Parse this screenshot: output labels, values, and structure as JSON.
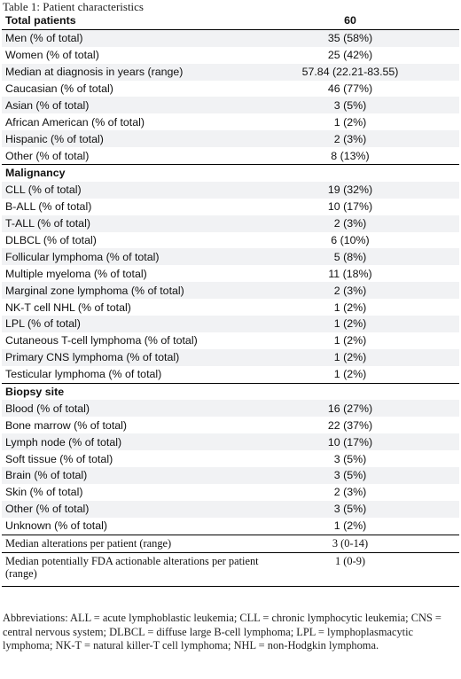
{
  "caption": "Table 1: Patient characteristics",
  "header": {
    "label": "Total patients",
    "value": "60"
  },
  "demographics": [
    {
      "label": "Men (% of total)",
      "value": "35 (58%)"
    },
    {
      "label": "Women (% of total)",
      "value": "25 (42%)"
    },
    {
      "label": "Median at diagnosis in years (range)",
      "value": "57.84 (22.21-83.55)"
    },
    {
      "label": "Caucasian (% of total)",
      "value": "46 (77%)"
    },
    {
      "label": "Asian (% of total)",
      "value": "3 (5%)"
    },
    {
      "label": "African American (% of total)",
      "value": "1 (2%)"
    },
    {
      "label": "Hispanic (% of total)",
      "value": "2 (3%)"
    },
    {
      "label": "Other (% of total)",
      "value": "8 (13%)"
    }
  ],
  "malignancy": {
    "title": "Malignancy",
    "rows": [
      {
        "label": "CLL (% of total)",
        "value": "19 (32%)"
      },
      {
        "label": "B-ALL (% of total)",
        "value": "10 (17%)"
      },
      {
        "label": "T-ALL (% of total)",
        "value": "2 (3%)"
      },
      {
        "label": "DLBCL (% of total)",
        "value": "6 (10%)"
      },
      {
        "label": "Follicular lymphoma (% of total)",
        "value": "5 (8%)"
      },
      {
        "label": "Multiple myeloma (% of total)",
        "value": "11 (18%)"
      },
      {
        "label": "Marginal zone lymphoma (% of total)",
        "value": "2 (3%)"
      },
      {
        "label": "NK-T cell NHL (% of total)",
        "value": "1 (2%)"
      },
      {
        "label": "LPL (% of total)",
        "value": "1 (2%)"
      },
      {
        "label": "Cutaneous T-cell lymphoma (% of total)",
        "value": "1 (2%)"
      },
      {
        "label": "Primary CNS lymphoma (% of total)",
        "value": "1 (2%)"
      },
      {
        "label": "Testicular lymphoma (% of total)",
        "value": "1 (2%)"
      }
    ]
  },
  "biopsy": {
    "title": "Biopsy site",
    "rows": [
      {
        "label": "Blood (% of total)",
        "value": "16 (27%)"
      },
      {
        "label": "Bone marrow (% of total)",
        "value": "22 (37%)"
      },
      {
        "label": "Lymph node (% of total)",
        "value": "10 (17%)"
      },
      {
        "label": "Soft tissue (% of total)",
        "value": "3 (5%)"
      },
      {
        "label": "Brain (% of total)",
        "value": "3 (5%)"
      },
      {
        "label": "Skin (% of total)",
        "value": "2 (3%)"
      },
      {
        "label": "Other (% of total)",
        "value": "3 (5%)"
      },
      {
        "label": "Unknown (% of total)",
        "value": "1 (2%)"
      }
    ]
  },
  "footer_rows": [
    {
      "label": "Median alterations per patient (range)",
      "value": "3 (0-14)"
    },
    {
      "label": "Median potentially FDA actionable alterations per patient (range)",
      "value": "1 (0-9)"
    }
  ],
  "abbreviations": "Abbreviations: ALL = acute lymphoblastic leukemia; CLL = chronic lymphocytic leukemia; CNS = central nervous system; DLBCL = diffuse large B-cell lymphoma; LPL = lymphoplasmacytic lymphoma; NK-T = natural killer-T cell lymphoma; NHL = non-Hodgkin lymphoma."
}
